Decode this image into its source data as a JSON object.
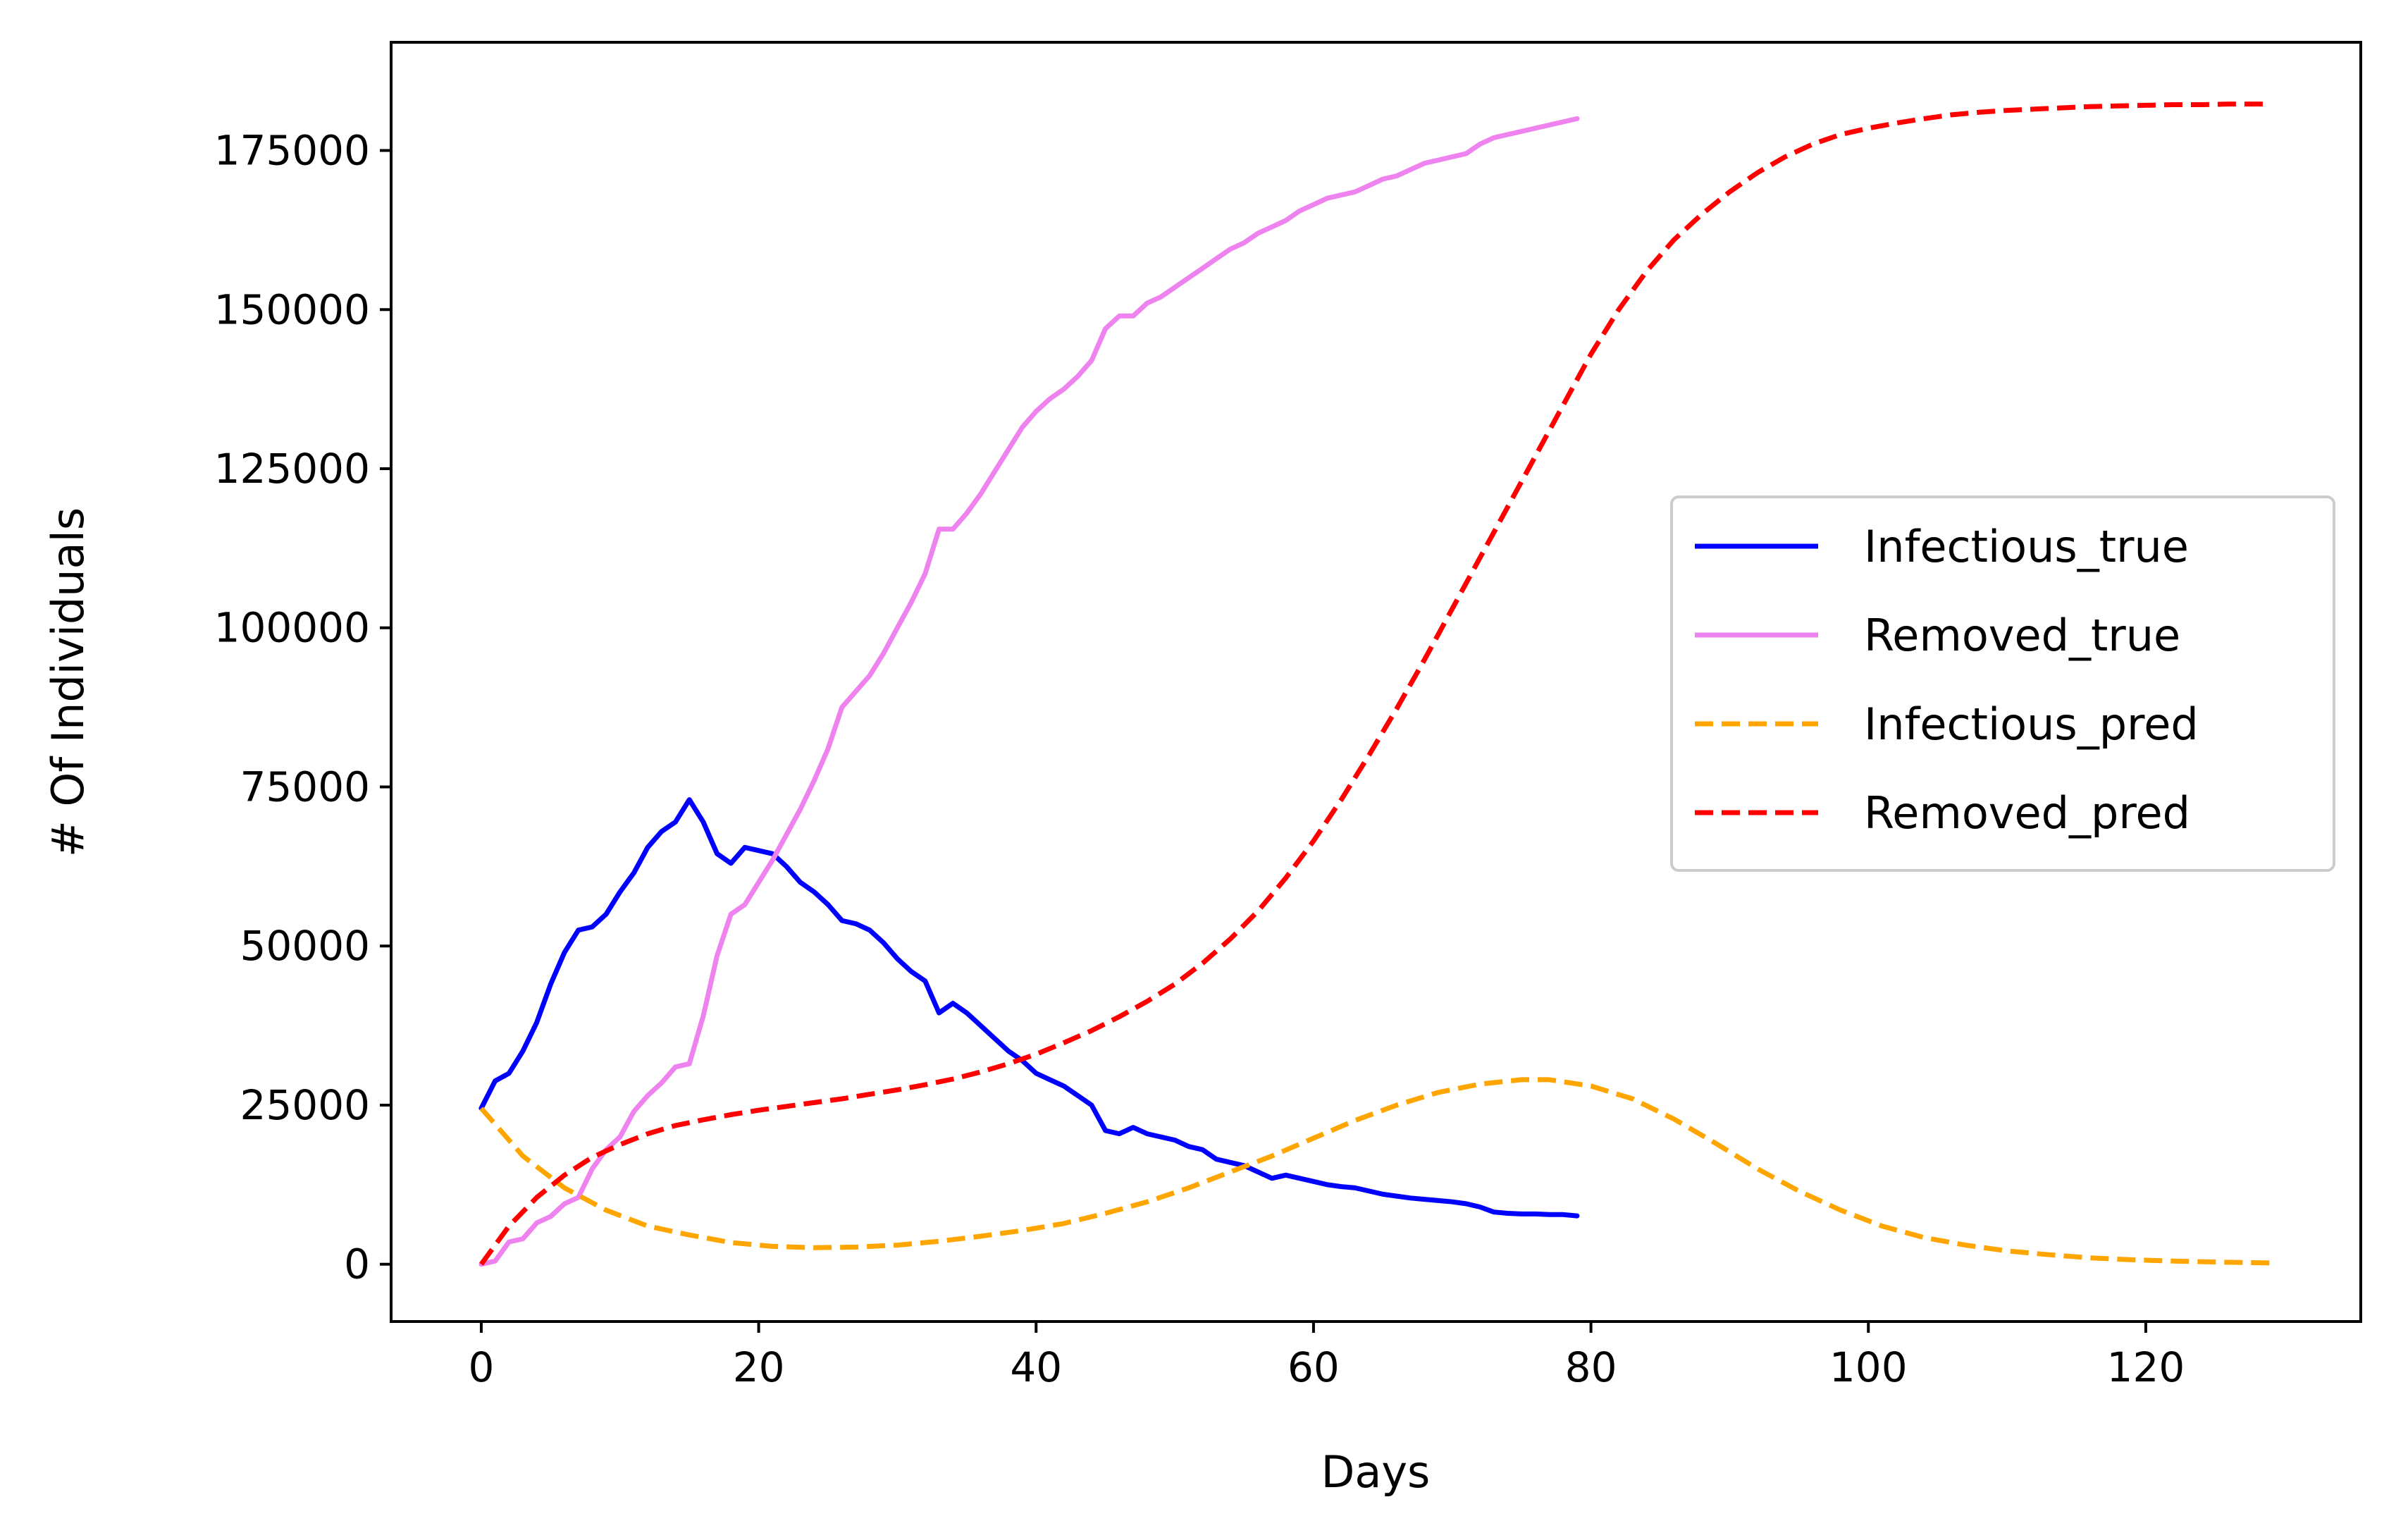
{
  "chart_data": {
    "type": "line",
    "title": "",
    "xlabel": "Days",
    "ylabel": "# Of Individuals",
    "xlim": [
      -6.5,
      135.5
    ],
    "ylim": [
      -9000,
      192000
    ],
    "xticks": [
      0,
      20,
      40,
      60,
      80,
      100,
      120
    ],
    "yticks": [
      0,
      25000,
      50000,
      75000,
      100000,
      125000,
      150000,
      175000
    ],
    "grid": false,
    "legend_position": "center-right",
    "series": [
      {
        "name": "Infectious_true",
        "color": "#0000ff",
        "style": "solid",
        "x": [
          0,
          1,
          2,
          3,
          4,
          5,
          6,
          7,
          8,
          9,
          10,
          11,
          12,
          13,
          14,
          15,
          16,
          17,
          18,
          19,
          20,
          21,
          22,
          23,
          24,
          25,
          26,
          27,
          28,
          29,
          30,
          31,
          32,
          33,
          34,
          35,
          36,
          37,
          38,
          39,
          40,
          41,
          42,
          43,
          44,
          45,
          46,
          47,
          48,
          49,
          50,
          51,
          52,
          53,
          54,
          55,
          56,
          57,
          58,
          59,
          60,
          61,
          62,
          63,
          64,
          65,
          66,
          67,
          68,
          69,
          70,
          71,
          72,
          73,
          74,
          75,
          76,
          77,
          78,
          79
        ],
        "y": [
          24500,
          28800,
          30000,
          33500,
          38000,
          44000,
          49000,
          52500,
          53000,
          55000,
          58500,
          61500,
          65500,
          68000,
          69500,
          73000,
          69500,
          64500,
          63000,
          65500,
          65000,
          64500,
          62500,
          60000,
          58500,
          56500,
          54000,
          53500,
          52500,
          50500,
          48000,
          46000,
          44500,
          39500,
          41000,
          39500,
          37500,
          35500,
          33500,
          32000,
          30000,
          29000,
          28000,
          26500,
          25000,
          21000,
          20500,
          21500,
          20500,
          20000,
          19500,
          18500,
          18000,
          16500,
          16000,
          15500,
          14500,
          13500,
          14000,
          13500,
          13000,
          12500,
          12200,
          12000,
          11500,
          11000,
          10700,
          10400,
          10200,
          10000,
          9800,
          9500,
          9000,
          8200,
          8000,
          7900,
          7900,
          7800,
          7800,
          7600
        ]
      },
      {
        "name": "Removed_true",
        "color": "#ee82ee",
        "style": "solid",
        "x": [
          0,
          1,
          2,
          3,
          4,
          5,
          6,
          7,
          8,
          9,
          10,
          11,
          12,
          13,
          14,
          15,
          16,
          17,
          18,
          19,
          20,
          21,
          22,
          23,
          24,
          25,
          26,
          27,
          28,
          29,
          30,
          31,
          32,
          33,
          34,
          35,
          36,
          37,
          38,
          39,
          40,
          41,
          42,
          43,
          44,
          45,
          46,
          47,
          48,
          49,
          50,
          51,
          52,
          53,
          54,
          55,
          56,
          57,
          58,
          59,
          60,
          61,
          62,
          63,
          64,
          65,
          66,
          67,
          68,
          69,
          70,
          71,
          72,
          73,
          74,
          75,
          76,
          77,
          78,
          79
        ],
        "y": [
          0,
          500,
          3500,
          4000,
          6500,
          7500,
          9500,
          10500,
          15000,
          18000,
          20000,
          24000,
          26500,
          28500,
          31000,
          31500,
          39000,
          48500,
          55000,
          56500,
          60000,
          63500,
          67500,
          71500,
          76000,
          81000,
          87500,
          90000,
          92500,
          96000,
          100000,
          104000,
          108500,
          115500,
          115500,
          118000,
          121000,
          124500,
          128000,
          131500,
          134000,
          136000,
          137500,
          139500,
          142000,
          147000,
          149000,
          149000,
          151000,
          152000,
          153500,
          155000,
          156500,
          158000,
          159500,
          160500,
          162000,
          163000,
          164000,
          165500,
          166500,
          167500,
          168000,
          168500,
          169500,
          170500,
          171000,
          172000,
          173000,
          173500,
          174000,
          174500,
          176000,
          177000,
          177500,
          178000,
          178500,
          179000,
          179500,
          180000
        ]
      },
      {
        "name": "Infectious_pred",
        "color": "#ffa500",
        "style": "dashed",
        "x": [
          0,
          3,
          6,
          9,
          12,
          15,
          18,
          21,
          24,
          27,
          30,
          33,
          36,
          39,
          42,
          45,
          48,
          51,
          54,
          57,
          60,
          63,
          66,
          69,
          72,
          75,
          77,
          80,
          83,
          86,
          89,
          92,
          95,
          98,
          101,
          104,
          107,
          110,
          113,
          116,
          119,
          122,
          125,
          129
        ],
        "y": [
          24500,
          17000,
          12000,
          8500,
          6000,
          4600,
          3400,
          2800,
          2600,
          2700,
          3000,
          3600,
          4400,
          5300,
          6400,
          8000,
          9800,
          12000,
          14500,
          17000,
          19800,
          22600,
          25000,
          27000,
          28300,
          29000,
          29000,
          28000,
          26000,
          22800,
          19000,
          15000,
          11500,
          8500,
          6000,
          4200,
          3000,
          2100,
          1500,
          1000,
          700,
          500,
          350,
          200
        ]
      },
      {
        "name": "Removed_pred",
        "color": "#ff0000",
        "style": "dashed",
        "x": [
          0,
          2,
          4,
          6,
          8,
          10,
          12,
          14,
          16,
          18,
          20,
          22,
          24,
          26,
          28,
          30,
          32,
          34,
          36,
          38,
          40,
          42,
          44,
          46,
          48,
          50,
          52,
          54,
          56,
          58,
          60,
          62,
          64,
          66,
          68,
          70,
          72,
          74,
          76,
          78,
          80,
          82,
          84,
          86,
          88,
          90,
          92,
          94,
          96,
          98,
          100,
          102,
          104,
          106,
          108,
          110,
          112,
          114,
          116,
          118,
          120,
          122,
          124,
          126,
          129
        ],
        "y": [
          0,
          6000,
          10500,
          14000,
          16800,
          18800,
          20500,
          21800,
          22700,
          23500,
          24200,
          24800,
          25400,
          26000,
          26700,
          27400,
          28200,
          29100,
          30200,
          31500,
          33000,
          34800,
          36700,
          38900,
          41300,
          44000,
          47300,
          51100,
          55500,
          60700,
          66500,
          73000,
          80000,
          87300,
          95000,
          103000,
          111000,
          119000,
          127000,
          135000,
          143000,
          150000,
          156000,
          161000,
          165000,
          168500,
          171500,
          174000,
          176000,
          177500,
          178500,
          179300,
          180000,
          180600,
          181000,
          181300,
          181500,
          181700,
          181900,
          182000,
          182100,
          182200,
          182200,
          182300,
          182300
        ]
      }
    ]
  }
}
